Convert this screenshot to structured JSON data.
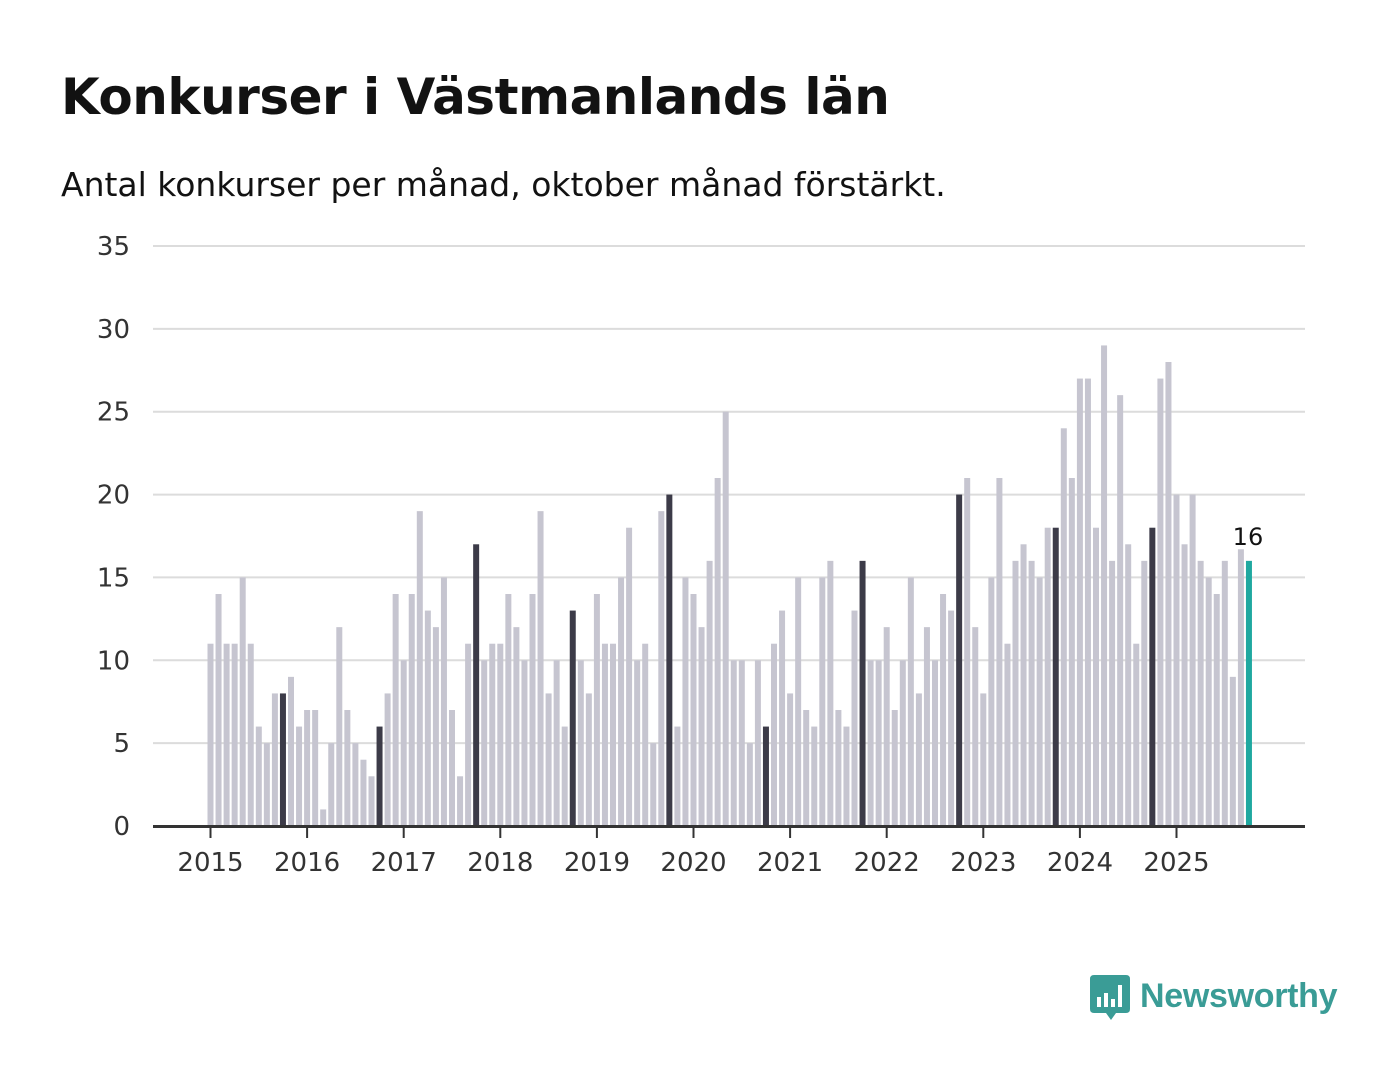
{
  "title": "Konkurser i Västmanlands län",
  "subtitle": "Antal konkurser per månad, oktober månad förstärkt.",
  "brand": {
    "name": "Newsworthy",
    "icon": "bar-chart-speech-bubble-icon"
  },
  "colors": {
    "bar_default": "#c6c5d0",
    "bar_october": "#3c3b48",
    "bar_latest": "#1fa8a0",
    "gridline": "#dcdcdc",
    "axis": "#333333",
    "brand": "#3a9c96"
  },
  "chart_data": {
    "type": "bar",
    "title": "Konkurser i Västmanlands län",
    "subtitle": "Antal konkurser per månad, oktober månad förstärkt.",
    "xlabel": "",
    "ylabel": "",
    "ylim": [
      0,
      35
    ],
    "yticks": [
      "0",
      "5",
      "10",
      "15",
      "20",
      "25",
      "30",
      "35"
    ],
    "grid": true,
    "start": "2015-01",
    "highlight_month": "oktober",
    "x_tick_labels": [
      "2015",
      "2016",
      "2017",
      "2018",
      "2019",
      "2020",
      "2021",
      "2022",
      "2023",
      "2024",
      "2025"
    ],
    "values": [
      11,
      14,
      11,
      11,
      15,
      11,
      6,
      5,
      8,
      8,
      9,
      6,
      7,
      7,
      1,
      5,
      12,
      7,
      5,
      4,
      3,
      6,
      8,
      14,
      10,
      14,
      19,
      13,
      12,
      15,
      7,
      3,
      11,
      17,
      10,
      11,
      11,
      14,
      12,
      10,
      14,
      19,
      8,
      10,
      6,
      13,
      10,
      8,
      14,
      11,
      11,
      15,
      18,
      10,
      11,
      5,
      19,
      20,
      6,
      15,
      14,
      12,
      16,
      21,
      25,
      10,
      10,
      5,
      10,
      6,
      11,
      13,
      8,
      15,
      7,
      6,
      15,
      16,
      7,
      6,
      13,
      16,
      10,
      10,
      12,
      7,
      10,
      15,
      8,
      12,
      10,
      14,
      13,
      20,
      21,
      12,
      8,
      15,
      21,
      11,
      16,
      17,
      16,
      15,
      18,
      18,
      24,
      21,
      27,
      27,
      18,
      29,
      16,
      26,
      17,
      11,
      16,
      18,
      27,
      28,
      20,
      17,
      20,
      16,
      15,
      14,
      16,
      9,
      16.7,
      16
    ],
    "latest_label": "16"
  }
}
